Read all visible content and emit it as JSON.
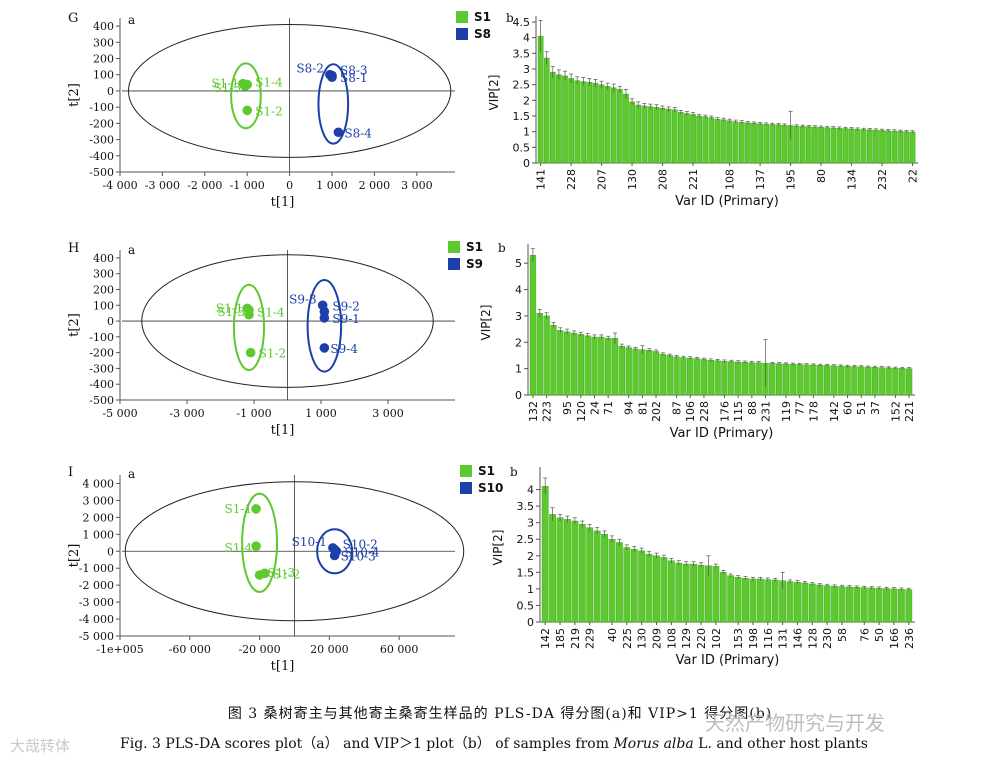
{
  "panels": [
    {
      "id": "G",
      "scores": {
        "sub": "a",
        "x_ticks": [
          "-4 000",
          "-3 000",
          "-2 000",
          "-1 000",
          "0",
          "1 000",
          "2 000",
          "3 000"
        ],
        "x_tick_values": [
          -4000,
          -3000,
          -2000,
          -1000,
          0,
          1000,
          2000,
          3000
        ],
        "xlim": [
          -4000,
          3900
        ],
        "y_ticks": [
          "400",
          "300",
          "200",
          "100",
          "0",
          "-100",
          "-200",
          "-300",
          "-400",
          "-500"
        ],
        "y_tick_values": [
          400,
          300,
          200,
          100,
          0,
          -100,
          -200,
          -300,
          -400,
          -500
        ],
        "ylim": [
          -500,
          450
        ],
        "xlabel": "t[1]",
        "ylabel": "t[2]",
        "ellipse": {
          "cx": 0,
          "cy": 0,
          "rx": 3800,
          "ry": 410
        },
        "groups": [
          {
            "name": "S1",
            "color": "#5cc92e",
            "points": [
              {
                "label": "S1-1",
                "x": -1100,
                "y": 45
              },
              {
                "label": "S1-3",
                "x": -1050,
                "y": 30
              },
              {
                "label": "S1-4",
                "x": -1000,
                "y": 40
              },
              {
                "label": "S1-2",
                "x": -1000,
                "y": -120
              }
            ],
            "ellipse": {
              "cx": -1030,
              "cy": -30,
              "rx": 350,
              "ry": 200
            }
          },
          {
            "name": "S8",
            "color": "#1c3faa",
            "points": [
              {
                "label": "S8-2",
                "x": 950,
                "y": 100
              },
              {
                "label": "S8-3",
                "x": 1000,
                "y": 95
              },
              {
                "label": "S8-1",
                "x": 1000,
                "y": 85
              },
              {
                "label": "S8-4",
                "x": 1150,
                "y": -255
              }
            ],
            "ellipse": {
              "cx": 1030,
              "cy": -80,
              "rx": 350,
              "ry": 245
            }
          }
        ]
      },
      "vip": {
        "sub": "b",
        "legend": [
          "S1",
          "S8"
        ],
        "ylabel": "VIP[2]",
        "xlabel": "Var ID (Primary)",
        "ylim": [
          0,
          4.5
        ],
        "y_ticks": [
          "0",
          "0.5",
          "1",
          "1.5",
          "2",
          "2.5",
          "3",
          "3.5",
          "4",
          "4.5"
        ],
        "x_tick_labels": [
          "141",
          "228",
          "207",
          "130",
          "208",
          "221",
          "108",
          "137",
          "195",
          "80",
          "134",
          "232",
          "22"
        ],
        "values": [
          4.05,
          3.35,
          2.9,
          2.82,
          2.78,
          2.7,
          2.63,
          2.6,
          2.58,
          2.55,
          2.5,
          2.45,
          2.4,
          2.35,
          2.2,
          1.95,
          1.85,
          1.82,
          1.8,
          1.78,
          1.75,
          1.72,
          1.7,
          1.62,
          1.58,
          1.55,
          1.5,
          1.48,
          1.45,
          1.4,
          1.38,
          1.35,
          1.32,
          1.3,
          1.28,
          1.27,
          1.25,
          1.24,
          1.23,
          1.22,
          1.21,
          1.2,
          1.18,
          1.17,
          1.16,
          1.15,
          1.14,
          1.13,
          1.12,
          1.11,
          1.1,
          1.09,
          1.08,
          1.07,
          1.06,
          1.05,
          1.04,
          1.03,
          1.02,
          1.01,
          1.0,
          0.99
        ],
        "errors": [
          0.5,
          0.2,
          0.18,
          0.15,
          0.15,
          0.14,
          0.12,
          0.13,
          0.12,
          0.12,
          0.11,
          0.1,
          0.12,
          0.1,
          0.15,
          0.1,
          0.1,
          0.08,
          0.08,
          0.08,
          0.07,
          0.07,
          0.07,
          0.06,
          0.06,
          0.06,
          0.05,
          0.05,
          0.05,
          0.05,
          0.05,
          0.05,
          0.05,
          0.05,
          0.05,
          0.04,
          0.04,
          0.04,
          0.04,
          0.04,
          0.04,
          0.45,
          0.04,
          0.04,
          0.04,
          0.04,
          0.04,
          0.04,
          0.04,
          0.04,
          0.04,
          0.04,
          0.04,
          0.04,
          0.04,
          0.04,
          0.04,
          0.04,
          0.04,
          0.04,
          0.04,
          0.04
        ]
      }
    },
    {
      "id": "H",
      "scores": {
        "sub": "a",
        "x_ticks": [
          "-5 000",
          "-3 000",
          "-1 000",
          "1 000",
          "3 000"
        ],
        "x_tick_values": [
          -5000,
          -3000,
          -1000,
          1000,
          3000
        ],
        "xlim": [
          -5000,
          5000
        ],
        "y_ticks": [
          "400",
          "300",
          "200",
          "100",
          "0",
          "-100",
          "-200",
          "-300",
          "-400",
          "-500"
        ],
        "y_tick_values": [
          400,
          300,
          200,
          100,
          0,
          -100,
          -200,
          -300,
          -400,
          -500
        ],
        "ylim": [
          -500,
          450
        ],
        "xlabel": "t[1]",
        "ylabel": "t[2]",
        "ellipse": {
          "cx": 0,
          "cy": 0,
          "rx": 4350,
          "ry": 420
        },
        "groups": [
          {
            "name": "S1",
            "color": "#5cc92e",
            "points": [
              {
                "label": "S1-1",
                "x": -1200,
                "y": 80
              },
              {
                "label": "S1-3",
                "x": -1150,
                "y": 70
              },
              {
                "label": "S1-4",
                "x": -1150,
                "y": 40
              },
              {
                "label": "S1-2",
                "x": -1100,
                "y": -200
              }
            ],
            "ellipse": {
              "cx": -1150,
              "cy": -40,
              "rx": 450,
              "ry": 270
            }
          },
          {
            "name": "S9",
            "color": "#1c3faa",
            "points": [
              {
                "label": "S9-3",
                "x": 1050,
                "y": 100
              },
              {
                "label": "S9-2",
                "x": 1100,
                "y": 60
              },
              {
                "label": "S9-1",
                "x": 1100,
                "y": 20
              },
              {
                "label": "S9-4",
                "x": 1100,
                "y": -170
              }
            ],
            "ellipse": {
              "cx": 1100,
              "cy": -30,
              "rx": 500,
              "ry": 290
            }
          }
        ]
      },
      "vip": {
        "sub": "b",
        "legend": [
          "S1",
          "S9"
        ],
        "ylabel": "VIP[2]",
        "xlabel": "Var ID (Primary)",
        "ylim": [
          0,
          5.5
        ],
        "y_ticks": [
          "0",
          "1",
          "2",
          "3",
          "4",
          "5"
        ],
        "x_tick_labels": [
          "132",
          "223",
          "95",
          "120",
          "24",
          "71",
          "94",
          "81",
          "202",
          "87",
          "106",
          "228",
          "176",
          "115",
          "88",
          "231",
          "119",
          "77",
          "178",
          "142",
          "60",
          "51",
          "37",
          "152",
          "221"
        ],
        "values": [
          5.3,
          3.1,
          3.0,
          2.65,
          2.45,
          2.4,
          2.35,
          2.3,
          2.25,
          2.2,
          2.2,
          2.15,
          2.15,
          1.85,
          1.8,
          1.75,
          1.72,
          1.7,
          1.65,
          1.55,
          1.5,
          1.45,
          1.42,
          1.4,
          1.38,
          1.35,
          1.32,
          1.3,
          1.28,
          1.27,
          1.25,
          1.24,
          1.23,
          1.22,
          1.21,
          1.2,
          1.19,
          1.18,
          1.17,
          1.16,
          1.15,
          1.14,
          1.13,
          1.12,
          1.11,
          1.1,
          1.09,
          1.08,
          1.07,
          1.06,
          1.05,
          1.04,
          1.03,
          1.02,
          1.01,
          1.0
        ],
        "errors": [
          0.25,
          0.15,
          0.12,
          0.1,
          0.1,
          0.1,
          0.08,
          0.08,
          0.08,
          0.08,
          0.08,
          0.08,
          0.2,
          0.08,
          0.06,
          0.06,
          0.15,
          0.06,
          0.06,
          0.05,
          0.05,
          0.05,
          0.05,
          0.05,
          0.05,
          0.05,
          0.05,
          0.05,
          0.05,
          0.05,
          0.05,
          0.05,
          0.05,
          0.05,
          0.9,
          0.04,
          0.04,
          0.04,
          0.04,
          0.04,
          0.04,
          0.04,
          0.04,
          0.04,
          0.04,
          0.04,
          0.04,
          0.04,
          0.04,
          0.04,
          0.04,
          0.04,
          0.04,
          0.04,
          0.04,
          0.04
        ]
      }
    },
    {
      "id": "I",
      "scores": {
        "sub": "a",
        "x_ticks": [
          "-1e+005",
          "-60 000",
          "-20 000",
          "20 000",
          "60 000"
        ],
        "x_tick_values": [
          -100000,
          -60000,
          -20000,
          20000,
          60000
        ],
        "xlim": [
          -100000,
          92000
        ],
        "y_ticks": [
          "4 000",
          "3 000",
          "2 000",
          "1 000",
          "0",
          "-1 000",
          "-2 000",
          "-3 000",
          "-4 000",
          "-5 000"
        ],
        "y_tick_values": [
          4000,
          3000,
          2000,
          1000,
          0,
          -1000,
          -2000,
          -3000,
          -4000,
          -5000
        ],
        "ylim": [
          -5000,
          4500
        ],
        "xlabel": "t[1]",
        "ylabel": "t[2]",
        "ellipse": {
          "cx": 0,
          "cy": 0,
          "rx": 97000,
          "ry": 4100
        },
        "groups": [
          {
            "name": "S1",
            "color": "#5cc92e",
            "points": [
              {
                "label": "S1-1",
                "x": -22000,
                "y": 2500
              },
              {
                "label": "S1-4",
                "x": -22000,
                "y": 300
              },
              {
                "label": "S1-3",
                "x": -20000,
                "y": -1400
              },
              {
                "label": "S1-2",
                "x": -17000,
                "y": -1300
              }
            ],
            "ellipse": {
              "cx": -20000,
              "cy": 500,
              "rx": 10000,
              "ry": 2900
            }
          },
          {
            "name": "S10",
            "color": "#1c3faa",
            "points": [
              {
                "label": "S10-1",
                "x": 22000,
                "y": 200
              },
              {
                "label": "S10-2",
                "x": 23000,
                "y": 100
              },
              {
                "label": "S10-4",
                "x": 24000,
                "y": 0
              },
              {
                "label": "S10-3",
                "x": 23000,
                "y": -250
              }
            ],
            "ellipse": {
              "cx": 23000,
              "cy": 0,
              "rx": 10000,
              "ry": 1300
            }
          }
        ]
      },
      "vip": {
        "sub": "b",
        "legend": [
          "S1",
          "S10"
        ],
        "ylabel": "VIP[2]",
        "xlabel": "Var ID (Primary)",
        "ylim": [
          0,
          4.5
        ],
        "y_ticks": [
          "0",
          "0.5",
          "1",
          "1.5",
          "2",
          "2.5",
          "3",
          "3.5",
          "4"
        ],
        "x_tick_labels": [
          "142",
          "185",
          "219",
          "229",
          "40",
          "225",
          "130",
          "209",
          "108",
          "129",
          "220",
          "102",
          "153",
          "198",
          "116",
          "131",
          "146",
          "128",
          "230",
          "58",
          "76",
          "50",
          "166",
          "236"
        ],
        "values": [
          4.1,
          3.25,
          3.15,
          3.1,
          3.05,
          2.95,
          2.85,
          2.75,
          2.65,
          2.5,
          2.4,
          2.25,
          2.2,
          2.15,
          2.05,
          2.0,
          1.95,
          1.85,
          1.78,
          1.75,
          1.75,
          1.72,
          1.7,
          1.68,
          1.5,
          1.4,
          1.35,
          1.32,
          1.3,
          1.3,
          1.28,
          1.27,
          1.25,
          1.22,
          1.2,
          1.18,
          1.15,
          1.12,
          1.1,
          1.08,
          1.07,
          1.06,
          1.05,
          1.04,
          1.03,
          1.02,
          1.01,
          1.0,
          0.99,
          0.98
        ],
        "errors": [
          0.25,
          0.2,
          0.1,
          0.1,
          0.1,
          0.1,
          0.1,
          0.1,
          0.1,
          0.1,
          0.1,
          0.08,
          0.08,
          0.08,
          0.08,
          0.08,
          0.07,
          0.07,
          0.07,
          0.07,
          0.07,
          0.07,
          0.3,
          0.07,
          0.06,
          0.05,
          0.05,
          0.05,
          0.05,
          0.05,
          0.05,
          0.05,
          0.25,
          0.05,
          0.05,
          0.04,
          0.04,
          0.04,
          0.04,
          0.04,
          0.04,
          0.04,
          0.04,
          0.04,
          0.04,
          0.04,
          0.04,
          0.04,
          0.04,
          0.04
        ]
      }
    }
  ],
  "caption": {
    "zh": "图 3   桑树寄主与其他寄主桑寄生样品的 PLS-DA 得分图(a)和 VIP>1 得分图(b)",
    "en_prefix": "Fig. 3   PLS-DA scores plot（a） and VIP＞1 plot（b） of samples from ",
    "en_italic": "Morus alba",
    "en_suffix": " L. and other host plants"
  },
  "watermarks": {
    "left": "大哉转体",
    "right": "天然产物研究与开发"
  },
  "chart_data": [
    {
      "type": "scatter",
      "title": "G a",
      "xlabel": "t[1]",
      "ylabel": "t[2]",
      "xlim": [
        -4000,
        3900
      ],
      "ylim": [
        -500,
        450
      ],
      "series": [
        {
          "name": "S1",
          "x": [
            -1100,
            -1050,
            -1000,
            -1000
          ],
          "y": [
            45,
            30,
            40,
            -120
          ]
        },
        {
          "name": "S8",
          "x": [
            950,
            1000,
            1000,
            1150
          ],
          "y": [
            100,
            95,
            85,
            -255
          ]
        }
      ]
    },
    {
      "type": "bar",
      "title": "G b",
      "xlabel": "Var ID (Primary)",
      "ylabel": "VIP[2]",
      "ylim": [
        0,
        4.5
      ]
    },
    {
      "type": "scatter",
      "title": "H a",
      "xlabel": "t[1]",
      "ylabel": "t[2]",
      "xlim": [
        -5000,
        5000
      ],
      "ylim": [
        -500,
        450
      ],
      "series": [
        {
          "name": "S1",
          "x": [
            -1200,
            -1150,
            -1150,
            -1100
          ],
          "y": [
            80,
            70,
            40,
            -200
          ]
        },
        {
          "name": "S9",
          "x": [
            1050,
            1100,
            1100,
            1100
          ],
          "y": [
            100,
            60,
            20,
            -170
          ]
        }
      ]
    },
    {
      "type": "bar",
      "title": "H b",
      "xlabel": "Var ID (Primary)",
      "ylabel": "VIP[2]",
      "ylim": [
        0,
        5.5
      ]
    },
    {
      "type": "scatter",
      "title": "I a",
      "xlabel": "t[1]",
      "ylabel": "t[2]",
      "xlim": [
        -100000,
        92000
      ],
      "ylim": [
        -5000,
        4500
      ],
      "series": [
        {
          "name": "S1",
          "x": [
            -22000,
            -22000,
            -20000,
            -17000
          ],
          "y": [
            2500,
            300,
            -1400,
            -1300
          ]
        },
        {
          "name": "S10",
          "x": [
            22000,
            23000,
            24000,
            23000
          ],
          "y": [
            200,
            100,
            0,
            -250
          ]
        }
      ]
    },
    {
      "type": "bar",
      "title": "I b",
      "xlabel": "Var ID (Primary)",
      "ylabel": "VIP[2]",
      "ylim": [
        0,
        4.5
      ]
    }
  ]
}
